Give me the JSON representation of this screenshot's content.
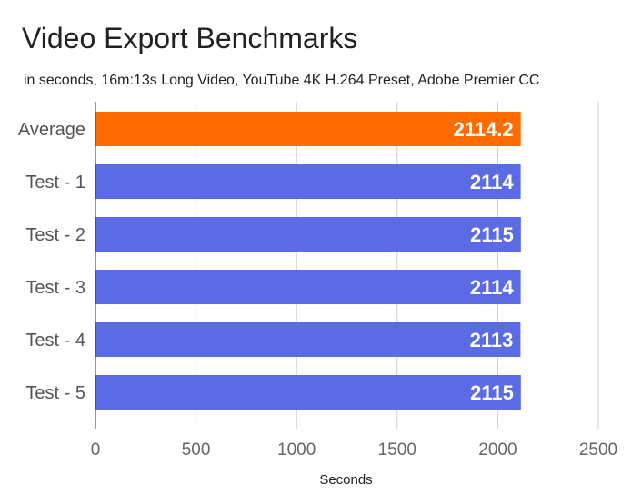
{
  "chart_data": {
    "type": "bar",
    "orientation": "horizontal",
    "title": "Video Export Benchmarks",
    "subtitle": "in seconds, 16m:13s Long Video, YouTube 4K H.264 Preset, Adobe Premier CC",
    "categories": [
      "Average",
      "Test - 1",
      "Test - 2",
      "Test - 3",
      "Test - 4",
      "Test - 5"
    ],
    "values": [
      2114.2,
      2114,
      2115,
      2114,
      2113,
      2115
    ],
    "value_labels": [
      "2114.2",
      "2114",
      "2115",
      "2114",
      "2113",
      "2115"
    ],
    "bar_colors": [
      "#ff6d01",
      "#5b6be3",
      "#5b6be3",
      "#5b6be3",
      "#5b6be3",
      "#5b6be3"
    ],
    "xlabel": "Seconds",
    "ylabel": "",
    "xlim": [
      0,
      2500
    ],
    "xticks": [
      0,
      500,
      1000,
      1500,
      2000,
      2500
    ],
    "grid": true,
    "legend": "none"
  }
}
